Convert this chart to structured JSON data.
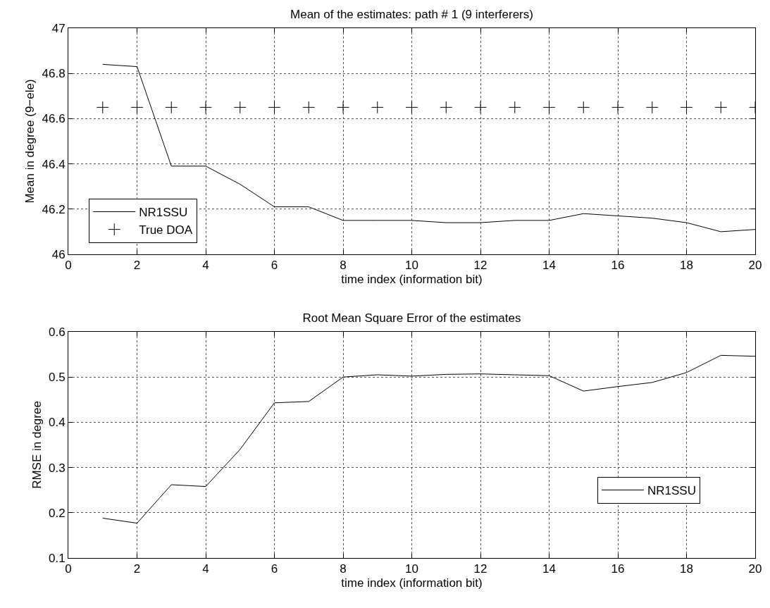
{
  "chart_data": [
    {
      "type": "line",
      "title": "Mean of the estimates: path # 1 (9 interferers)",
      "xlabel": "time index (information bit)",
      "ylabel": "Mean in degree (9−ele)",
      "x": [
        1,
        2,
        3,
        4,
        5,
        6,
        7,
        8,
        9,
        10,
        11,
        12,
        13,
        14,
        15,
        16,
        17,
        18,
        19,
        20
      ],
      "series": [
        {
          "name": "NR1SSU",
          "color": "#000000",
          "marker": "none",
          "values": [
            46.84,
            46.83,
            46.39,
            46.39,
            46.31,
            46.21,
            46.21,
            46.15,
            46.15,
            46.15,
            46.14,
            46.14,
            46.15,
            46.15,
            46.18,
            46.17,
            46.16,
            46.14,
            46.1,
            46.11
          ]
        },
        {
          "name": "True DOA",
          "type": "scatter",
          "color": "#000000",
          "marker": "cross",
          "values": [
            46.65,
            46.65,
            46.65,
            46.65,
            46.65,
            46.65,
            46.65,
            46.65,
            46.65,
            46.65,
            46.65,
            46.65,
            46.65,
            46.65,
            46.65,
            46.65,
            46.65,
            46.65,
            46.65,
            46.65
          ]
        }
      ],
      "xlim": [
        0,
        20
      ],
      "xticks": [
        0,
        2,
        4,
        6,
        8,
        10,
        12,
        14,
        16,
        18,
        20
      ],
      "ylim": [
        46,
        47
      ],
      "yticks": [
        46,
        46.2,
        46.4,
        46.6,
        46.8,
        47
      ],
      "grid": true,
      "legend": "bottom left",
      "line_style": "solid"
    },
    {
      "type": "line",
      "title": "Root Mean Square Error of the estimates",
      "xlabel": "time index (information bit)",
      "ylabel": "RMSE in degree",
      "x": [
        1,
        2,
        3,
        4,
        5,
        6,
        7,
        8,
        9,
        10,
        11,
        12,
        13,
        14,
        15,
        16,
        17,
        18,
        19,
        20
      ],
      "series": [
        {
          "name": "NR1SSU",
          "color": "#000000",
          "marker": "none",
          "values": [
            0.188,
            0.177,
            0.262,
            0.258,
            0.34,
            0.443,
            0.446,
            0.5,
            0.505,
            0.502,
            0.506,
            0.507,
            0.505,
            0.503,
            0.469,
            0.479,
            0.488,
            0.51,
            0.548,
            0.546
          ]
        }
      ],
      "xlim": [
        0,
        20
      ],
      "xticks": [
        0,
        2,
        4,
        6,
        8,
        10,
        12,
        14,
        16,
        18,
        20
      ],
      "ylim": [
        0.1,
        0.6
      ],
      "yticks": [
        0.1,
        0.2,
        0.3,
        0.4,
        0.5,
        0.6
      ],
      "grid": true,
      "legend": "right",
      "line_style": "solid"
    }
  ]
}
